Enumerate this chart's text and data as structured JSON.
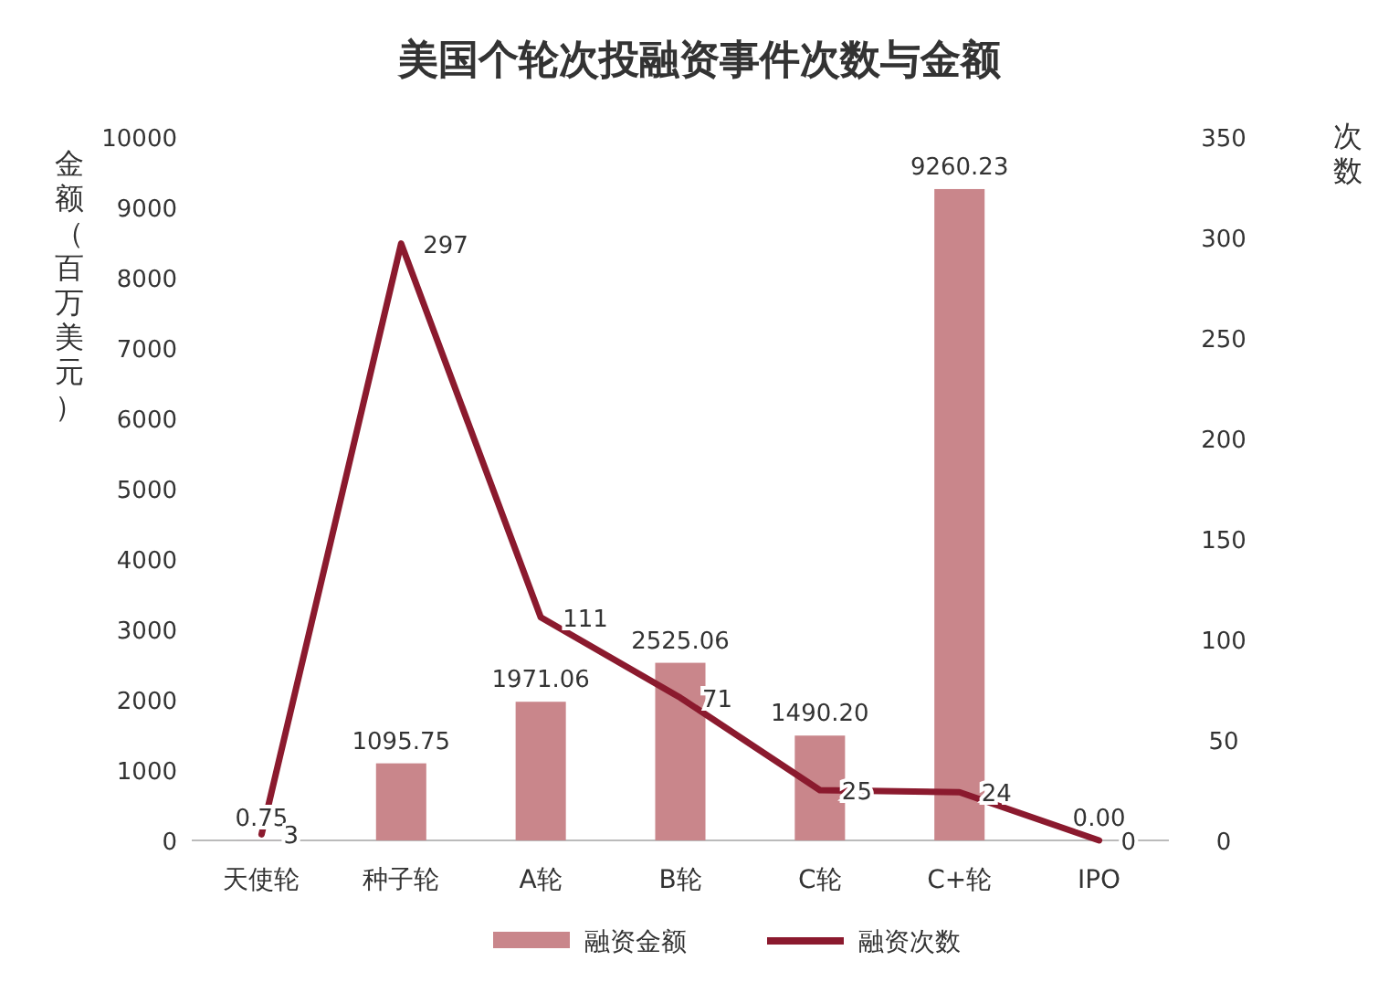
{
  "chart_data": {
    "type": "bar",
    "title": "美国个轮次投融资事件次数与金额",
    "ylabel": "金额（百万美元）",
    "y2label": "次数",
    "categories": [
      "天使轮",
      "种子轮",
      "A轮",
      "B轮",
      "C轮",
      "C+轮",
      "IPO"
    ],
    "series": [
      {
        "name": "融资金额",
        "type": "bar",
        "color": "#c9868b",
        "values": [
          0.75,
          1095.75,
          1971.06,
          2525.06,
          1490.2,
          9260.23,
          0.0
        ],
        "value_labels": [
          "0.75",
          "1095.75",
          "1971.06",
          "2525.06",
          "1490.20",
          "9260.23",
          "0.00"
        ]
      },
      {
        "name": "融资次数",
        "type": "line",
        "axis": "y2",
        "color": "#8b1a2e",
        "values": [
          3,
          297,
          111,
          71,
          25,
          24,
          0
        ],
        "value_labels": [
          "3",
          "297",
          "111",
          "71",
          "25",
          "24",
          "0"
        ]
      }
    ],
    "ylim": [
      0,
      10000
    ],
    "yticks": [
      0,
      1000,
      2000,
      3000,
      4000,
      5000,
      6000,
      7000,
      8000,
      9000,
      10000
    ],
    "y2lim": [
      0,
      350
    ],
    "y2ticks": [
      0,
      50,
      100,
      150,
      200,
      250,
      300,
      350
    ],
    "legend": "bottom",
    "marker": "none",
    "line_style": "solid"
  }
}
